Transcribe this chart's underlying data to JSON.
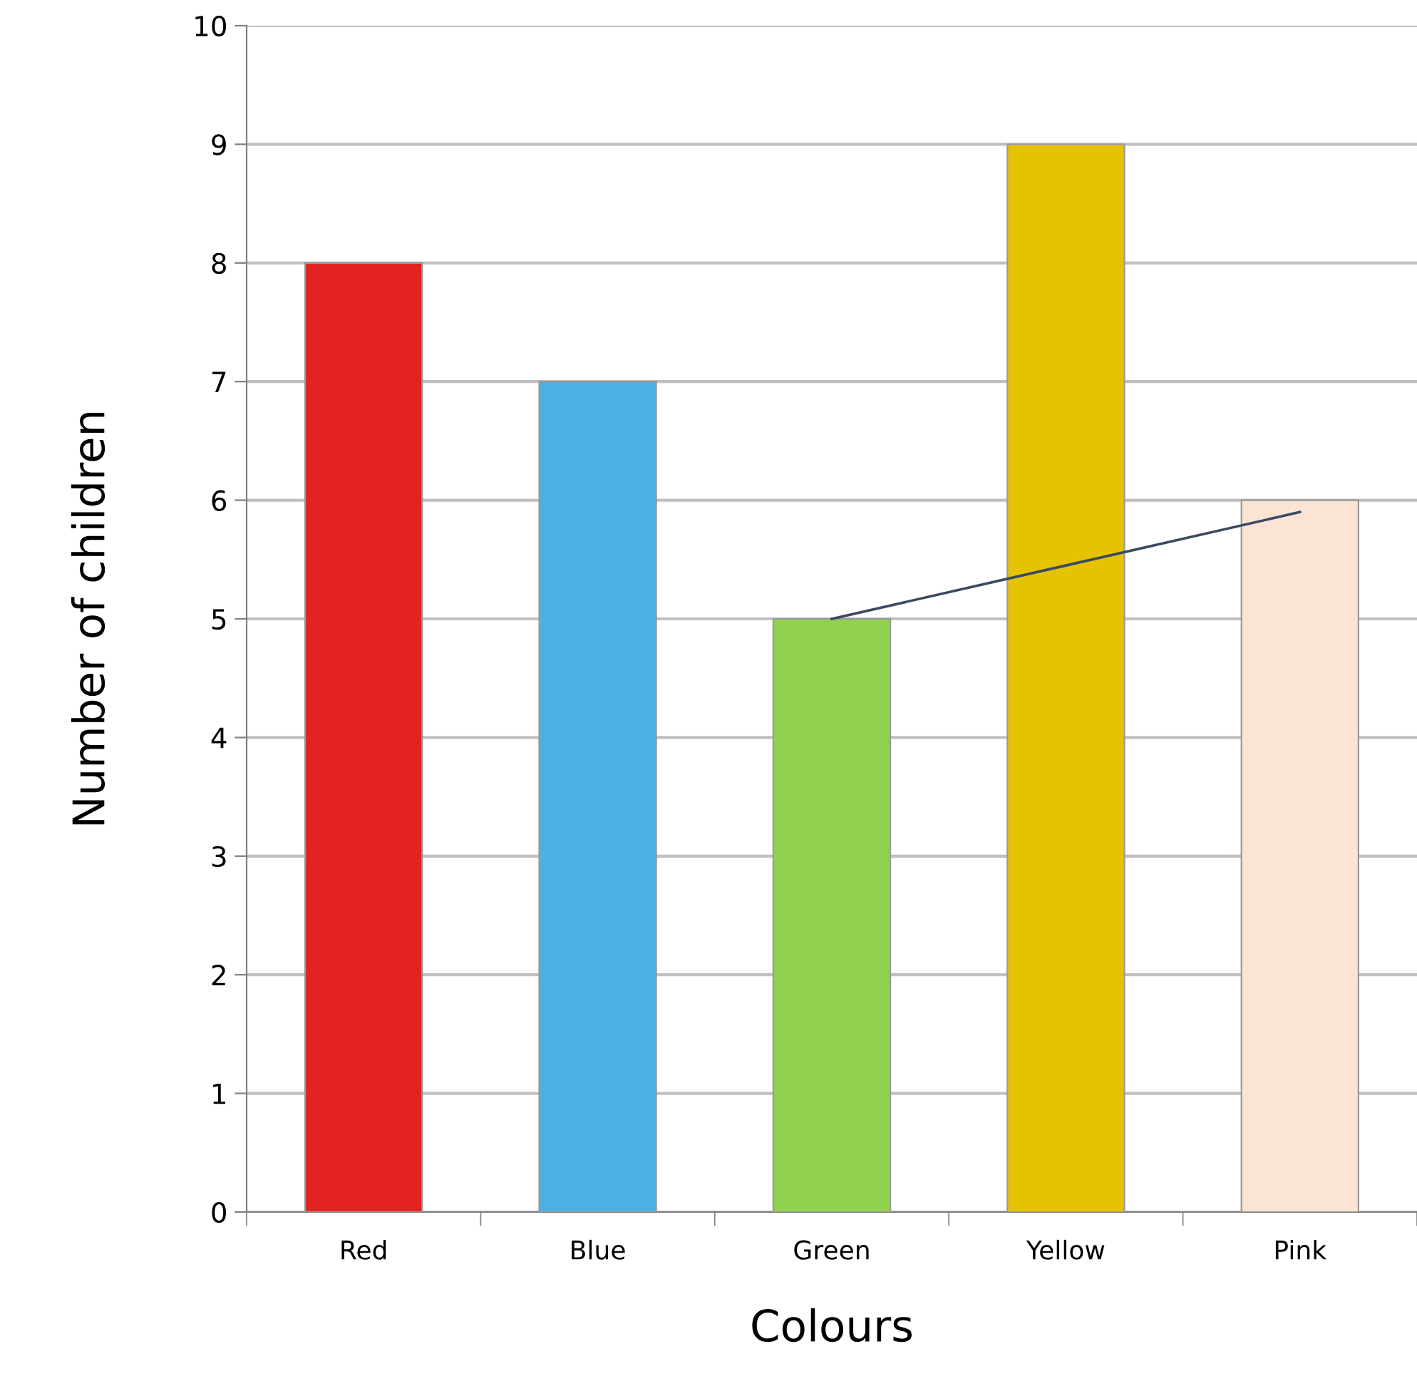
{
  "chart_data": {
    "type": "bar",
    "xlabel": "Colours",
    "ylabel": "Number of children",
    "categories": [
      "Red",
      "Blue",
      "Green",
      "Yellow",
      "Pink"
    ],
    "series": [
      {
        "colors": [
          "#e32222",
          "#4cb0e2",
          "#92d050",
          "#e6c300",
          "#fbe3d5"
        ],
        "values": [
          8,
          7,
          5,
          9,
          6
        ]
      },
      {
        "type": "line",
        "color": "#3a4a60",
        "values": [
          null,
          null,
          5,
          5.45,
          5.9
        ]
      }
    ],
    "ylim": [
      0,
      10
    ],
    "yticks": [
      0,
      1,
      2,
      3,
      4,
      5,
      6,
      7,
      8,
      9,
      10
    ],
    "grid": "y",
    "legend": false
  }
}
